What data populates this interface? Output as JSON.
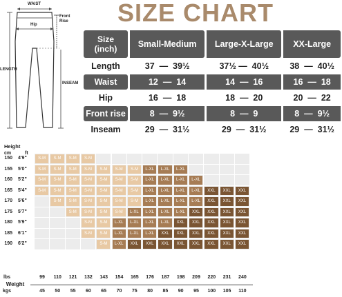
{
  "title": "SIZE CHART",
  "diagram": {
    "labels": {
      "waist": "WAIST",
      "front_rise": "Front Rise",
      "hip": "Hip",
      "length": "LENGTH",
      "inseam": "INSEAM"
    }
  },
  "size_table": {
    "corner_label": "Size\n(inch)",
    "columns": [
      "Small-Medium",
      "Large-X-Large",
      "XX-Large"
    ],
    "rows": [
      {
        "label": "Length",
        "style": "light",
        "values": [
          "37  —  39½",
          "37½ —  40½",
          "38  —  40½"
        ]
      },
      {
        "label": "Waist",
        "style": "dark",
        "values": [
          "12  —  14",
          "14  —  16",
          "16  —  18"
        ]
      },
      {
        "label": "Hip",
        "style": "light",
        "values": [
          "16  —  18",
          "18  —  20",
          "20  —  22"
        ]
      },
      {
        "label": "Front rise",
        "style": "dark",
        "values": [
          "8  —  9½",
          "8  —  9",
          "8  —  9½"
        ]
      },
      {
        "label": "Inseam",
        "style": "light",
        "values": [
          "29  —  31½",
          "29  —  31½",
          "29  —  31½"
        ]
      }
    ]
  },
  "chart_data": {
    "type": "table",
    "title": "",
    "y_title": "Height",
    "y_units": [
      "cm",
      "ft"
    ],
    "heights_cm": [
      "150",
      "155",
      "160",
      "165",
      "170",
      "175",
      "180",
      "185",
      "190"
    ],
    "heights_ft": [
      "4'9\"",
      "5'0\"",
      "5'2\"",
      "5'4\"",
      "5'6\"",
      "5'7\"",
      "5'9\"",
      "6'1\"",
      "6'2\""
    ],
    "x_title": "Weight",
    "x_units": [
      "lbs",
      "kgs"
    ],
    "weights_lbs": [
      "99",
      "110",
      "121",
      "132",
      "143",
      "154",
      "165",
      "176",
      "187",
      "198",
      "209",
      "220",
      "231",
      "240"
    ],
    "weights_kgs": [
      "45",
      "50",
      "55",
      "60",
      "65",
      "70",
      "75",
      "80",
      "85",
      "90",
      "95",
      "100",
      "105",
      "110"
    ],
    "size_colors": {
      "S-M": "#e8c9a4",
      "L-XL": "#a67c54",
      "XXL": "#7a5533"
    },
    "grid": [
      [
        "S-M",
        "S-M",
        "S-M",
        "S-M",
        "",
        "",
        "",
        "",
        "",
        "",
        "",
        "",
        "",
        ""
      ],
      [
        "S-M",
        "S-M",
        "S-M",
        "S-M",
        "S-M",
        "S-M",
        "S-M",
        "L-XL",
        "L-XL",
        "L-XL",
        "",
        "",
        "",
        ""
      ],
      [
        "S-M",
        "S-M",
        "S-M",
        "S-M",
        "S-M",
        "S-M",
        "S-M",
        "L-XL",
        "L-XL",
        "L-XL",
        "L-XL",
        "",
        "",
        ""
      ],
      [
        "S-M",
        "S-M",
        "S-M",
        "S-M",
        "S-M",
        "S-M",
        "S-M",
        "L-XL",
        "L-XL",
        "L-XL",
        "L-XL",
        "XXL",
        "XXL",
        "XXL"
      ],
      [
        "",
        "S-M",
        "S-M",
        "S-M",
        "S-M",
        "S-M",
        "S-M",
        "L-XL",
        "L-XL",
        "L-XL",
        "L-XL",
        "XXL",
        "XXL",
        "XXL"
      ],
      [
        "",
        "",
        "S-M",
        "S-M",
        "S-M",
        "S-M",
        "L-XL",
        "L-XL",
        "L-XL",
        "L-XL",
        "XXL",
        "XXL",
        "XXL",
        "XXL"
      ],
      [
        "",
        "",
        "",
        "S-M",
        "S-M",
        "L-XL",
        "L-XL",
        "L-XL",
        "L-XL",
        "XXL",
        "XXL",
        "XXL",
        "XXL",
        "XXL"
      ],
      [
        "",
        "",
        "",
        "S-M",
        "S-M",
        "L-XL",
        "L-XL",
        "L-XL",
        "XXL",
        "XXL",
        "XXL",
        "XXL",
        "XXL",
        "XXL"
      ],
      [
        "",
        "",
        "",
        "",
        "S-M",
        "L-XL",
        "XXL",
        "XXL",
        "XXL",
        "XXL",
        "XXL",
        "XXL",
        "XXL",
        "XXL"
      ]
    ]
  }
}
